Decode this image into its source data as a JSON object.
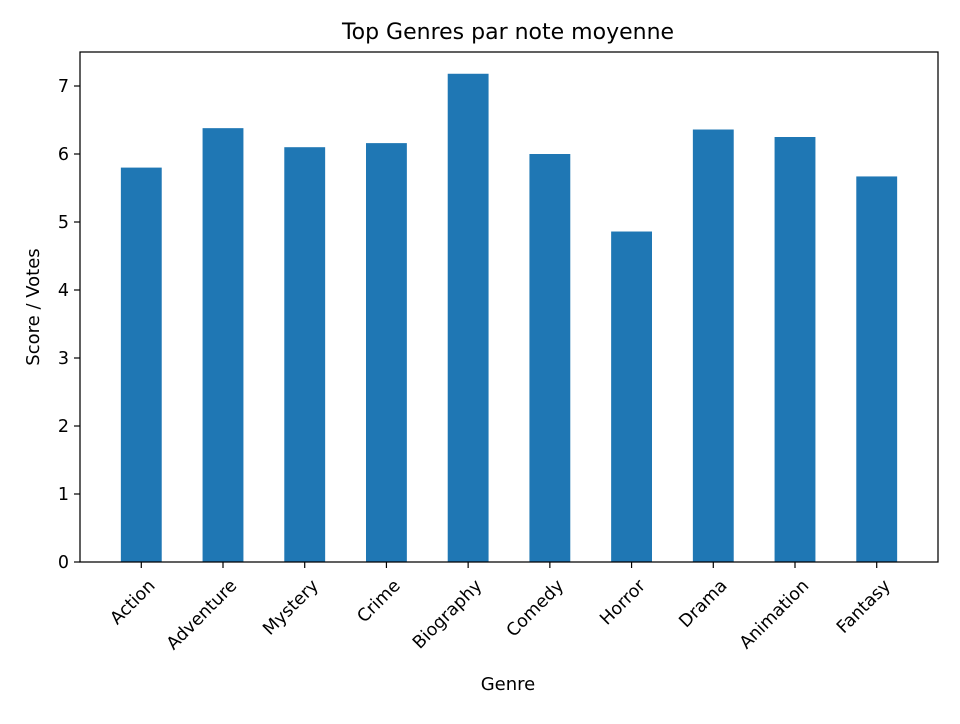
{
  "chart_data": {
    "type": "bar",
    "title": "Top Genres par note moyenne",
    "xlabel": "Genre",
    "ylabel": "Score / Votes",
    "categories": [
      "Action",
      "Adventure",
      "Mystery",
      "Crime",
      "Biography",
      "Comedy",
      "Horror",
      "Drama",
      "Animation",
      "Fantasy"
    ],
    "values": [
      5.8,
      6.38,
      6.1,
      6.16,
      7.18,
      6.0,
      4.86,
      6.36,
      6.25,
      5.67
    ],
    "ylim": [
      0,
      7.5
    ],
    "yticks": [
      0,
      1,
      2,
      3,
      4,
      5,
      6,
      7
    ],
    "grid": false,
    "bar_color": "#1f77b4",
    "xtick_rotation_deg": 45
  }
}
